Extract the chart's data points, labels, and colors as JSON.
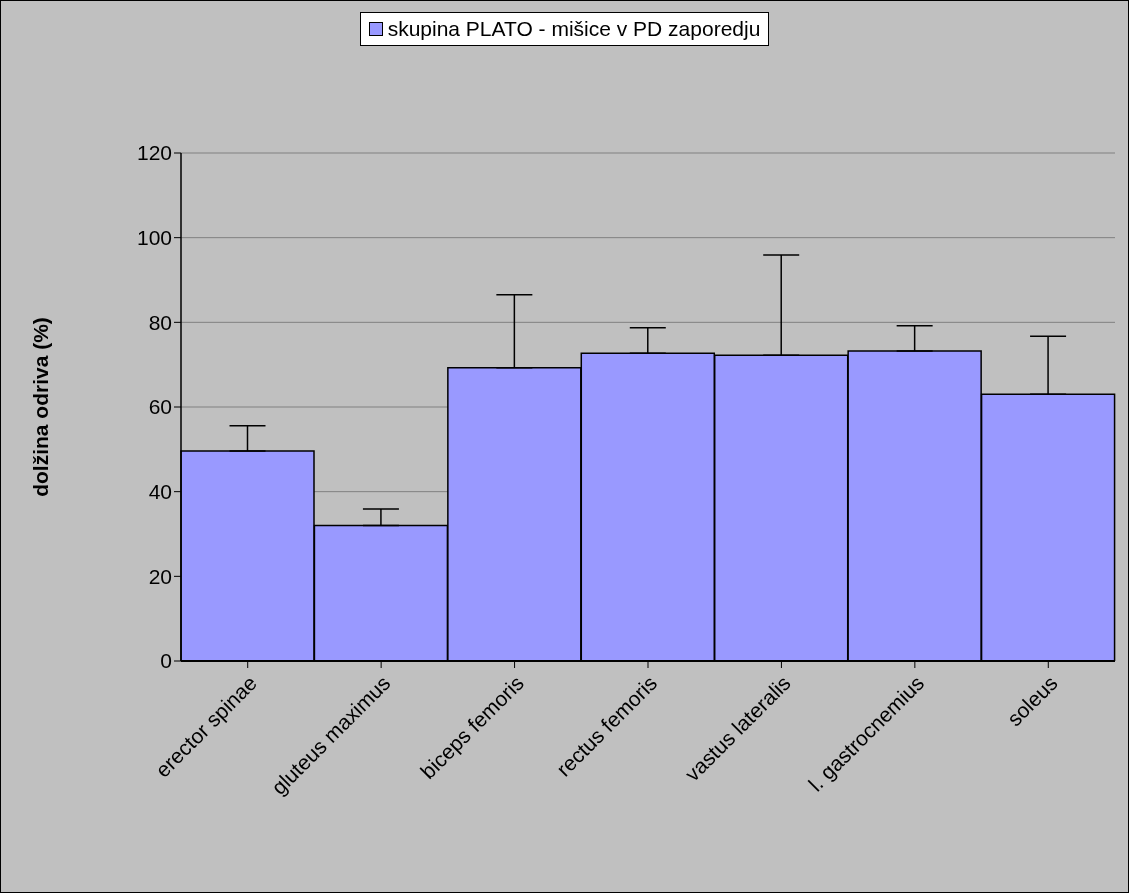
{
  "chart_data": {
    "type": "bar",
    "ylabel": "dolžina odriva (%)",
    "categories": [
      "erector spinae",
      "gluteus maximus",
      "biceps femoris",
      "rectus femoris",
      "vastus lateralis",
      "l. gastrocnemius",
      "soleus"
    ],
    "series": [
      {
        "name": "skupina PLATO - mišice v PD zaporedju",
        "color": "#9999ff",
        "values": [
          49.6,
          32.0,
          69.3,
          72.7,
          72.2,
          73.2,
          63.0
        ],
        "errors": [
          [
            49.6,
            55.6
          ],
          [
            32.0,
            35.9
          ],
          [
            69.3,
            86.5
          ],
          [
            72.7,
            78.7
          ],
          [
            72.2,
            95.9
          ],
          [
            73.2,
            79.2
          ],
          [
            63.0,
            76.7
          ]
        ]
      }
    ],
    "ylim": [
      0,
      120
    ],
    "yticks": [
      0,
      20,
      40,
      60,
      80,
      100,
      120
    ],
    "grid": "y",
    "legend": "top"
  }
}
